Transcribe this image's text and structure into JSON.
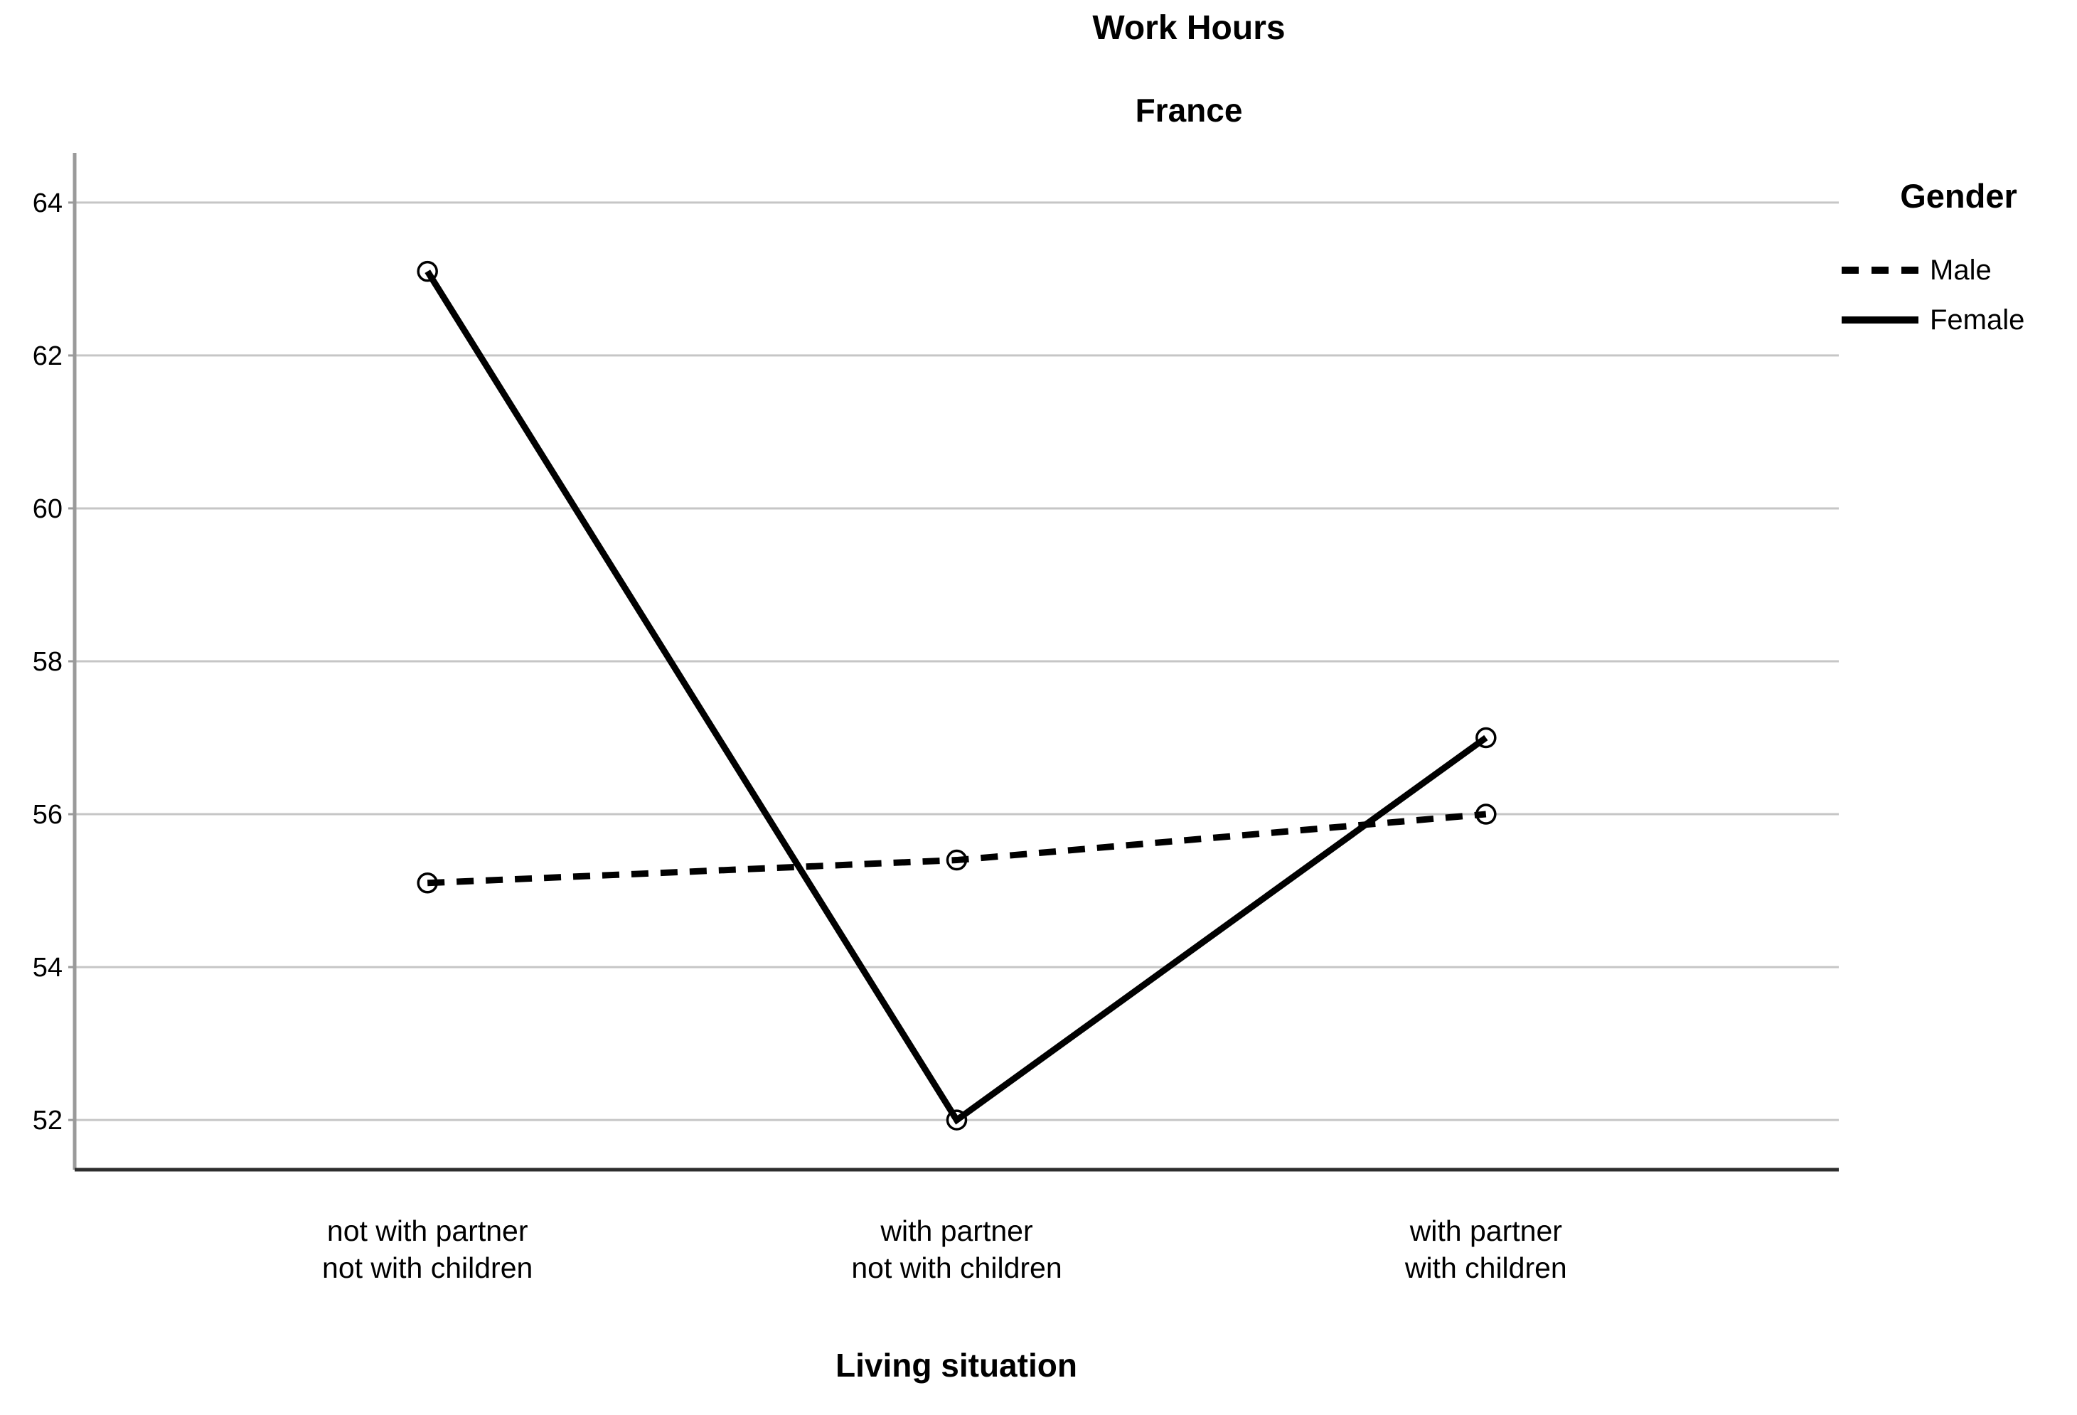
{
  "chart_data": {
    "type": "line",
    "title": "Work Hours",
    "subtitle": "France",
    "xlabel": "Living situation",
    "ylabel": "",
    "categories": [
      "not with partner\nnot with children",
      "with partner\nnot with children",
      "with partner\nwith children"
    ],
    "yticks": [
      52,
      54,
      56,
      58,
      60,
      62,
      64
    ],
    "ylim": [
      51.35,
      64.65
    ],
    "grid": "horizontal-only",
    "legend_title": "Gender",
    "legend_position": "top-right",
    "marker": "open-circle",
    "series": [
      {
        "name": "Male",
        "style": "dashed",
        "values": [
          55.1,
          55.4,
          56.0
        ]
      },
      {
        "name": "Female",
        "style": "solid",
        "values": [
          63.1,
          52.0,
          57.0
        ]
      }
    ],
    "colors": {
      "line": "#000000",
      "gridline": "#c6c6c6",
      "spine": "#9a9a9a",
      "axis": "#2e2e2e",
      "text": "#000000",
      "background": "#ffffff"
    }
  }
}
